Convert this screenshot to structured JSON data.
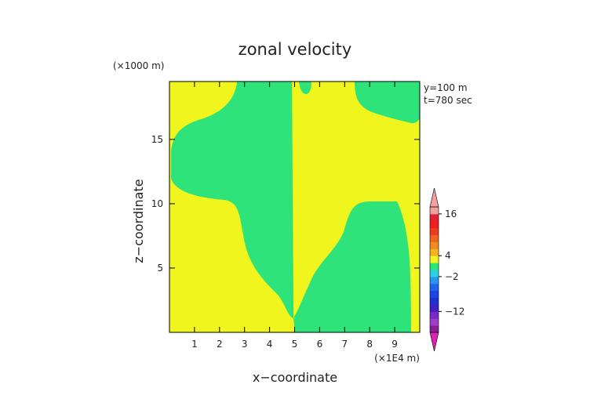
{
  "chart_data": {
    "type": "heatmap",
    "title": "zonal velocity",
    "xlabel": "x−coordinate",
    "ylabel": "z−coordinate",
    "x_unit": "(×1E4 m)",
    "y_unit": "(×1000 m)",
    "annotations": [
      "y=100 m",
      "t=780 sec"
    ],
    "xlim": [
      0,
      10
    ],
    "ylim": [
      0,
      19.5
    ],
    "xticks": [
      1,
      2,
      3,
      4,
      5,
      6,
      7,
      8,
      9
    ],
    "yticks": [
      5,
      10,
      15
    ],
    "regions": [
      {
        "name": "background",
        "color": "#f0f51e",
        "level_range": [
          0,
          4
        ]
      },
      {
        "name": "left-lobe",
        "color": "#2ee47a",
        "level_range": [
          -2,
          0
        ]
      },
      {
        "name": "right-lobe",
        "color": "#2ee47a",
        "level_range": [
          -2,
          0
        ]
      },
      {
        "name": "top-blob",
        "color": "#2ee47a",
        "level_range": [
          -2,
          0
        ]
      },
      {
        "name": "top-right-cap",
        "color": "#2ee47a",
        "level_range": [
          -2,
          0
        ]
      }
    ],
    "colorbar": {
      "tick_labels": [
        "16",
        "4",
        "−2",
        "−12"
      ],
      "tick_values": [
        16,
        4,
        -2,
        -12
      ],
      "levels": [
        -18,
        -16,
        -14,
        -12,
        -10,
        -8,
        -6,
        -4,
        -2,
        0,
        2,
        4,
        6,
        8,
        10,
        12,
        14,
        16,
        18
      ],
      "colors": [
        "#8a1e9a",
        "#a03cc8",
        "#7828c8",
        "#4020c0",
        "#2030d0",
        "#1a46e6",
        "#1e64f0",
        "#2896f0",
        "#28d2e6",
        "#28e678",
        "#f0f51e",
        "#f5b41e",
        "#f08c1e",
        "#f0641e",
        "#f03c1e",
        "#f01e1e",
        "#e61e32",
        "#f0a0a0"
      ],
      "min_arrow_color": "#e020b0",
      "max_arrow_color": "#f5a0a0"
    }
  }
}
